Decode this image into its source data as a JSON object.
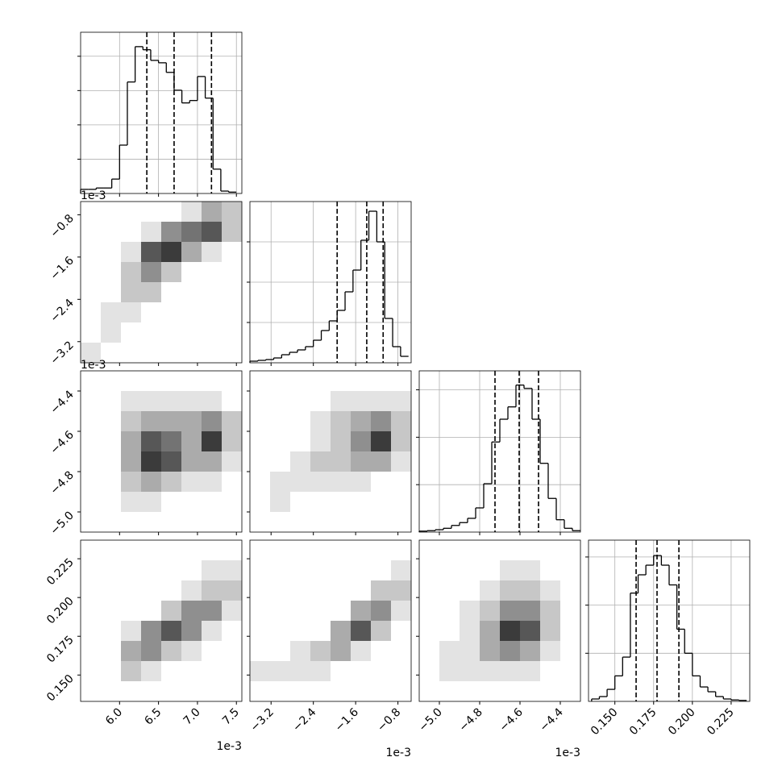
{
  "chart_data": {
    "type": "corner",
    "grid": true,
    "params": [
      {
        "xlim": [
          5.5,
          7.57
        ],
        "ticks": [
          {
            "value": 6,
            "label": "6.0"
          },
          {
            "value": 6.5,
            "label": "6.5"
          },
          {
            "value": 7,
            "label": "7.0"
          },
          {
            "value": 7.5,
            "label": "7.5"
          }
        ],
        "offset": "1e-3"
      },
      {
        "xlim": [
          -3.6,
          -0.55
        ],
        "ticks": [
          {
            "value": -3.2,
            "label": "−3.2"
          },
          {
            "value": -2.4,
            "label": "−2.4"
          },
          {
            "value": -1.6,
            "label": "−1.6"
          },
          {
            "value": -0.8,
            "label": "−0.8"
          }
        ],
        "offset": "1e-3"
      },
      {
        "xlim": [
          -5.1,
          -4.3
        ],
        "ticks": [
          {
            "value": -5.0,
            "label": "−5.0"
          },
          {
            "value": -4.8,
            "label": "−4.8"
          },
          {
            "value": -4.6,
            "label": "−4.6"
          },
          {
            "value": -4.4,
            "label": "−4.4"
          }
        ],
        "offset": "1e-3"
      },
      {
        "xlim": [
          0.133,
          0.237
        ],
        "ticks": [
          {
            "value": 0.15,
            "label": "0.150"
          },
          0.175,
          {
            "value": 0.2,
            "label": "0.200"
          },
          0.225
        ]
      }
    ],
    "histograms": [
      {
        "bins": [
          5.5,
          5.6,
          5.7,
          5.8,
          5.9,
          6.0,
          6.1,
          6.2,
          6.3,
          6.4,
          6.5,
          6.6,
          6.7,
          6.8,
          6.9,
          7.0,
          7.1,
          7.2,
          7.3,
          7.4,
          7.5
        ],
        "counts": [
          12,
          12,
          16,
          16,
          42,
          141,
          325,
          428,
          419,
          388,
          381,
          353,
          301,
          264,
          271,
          341,
          278,
          71,
          7,
          4
        ],
        "ylim": [
          0,
          470
        ],
        "yticks": [
          100,
          200,
          300,
          400
        ],
        "quantiles": [
          6.35,
          6.7,
          7.18
        ]
      },
      {
        "bins": [
          -3.6,
          -3.45,
          -3.3,
          -3.15,
          -3.0,
          -2.85,
          -2.7,
          -2.55,
          -2.4,
          -2.25,
          -2.1,
          -1.95,
          -1.8,
          -1.65,
          -1.5,
          -1.35,
          -1.2,
          -1.05,
          -0.9,
          -0.75,
          -0.6
        ],
        "counts": [
          4,
          6,
          8,
          12,
          20,
          26,
          32,
          40,
          56,
          80,
          104,
          130,
          176,
          230,
          304,
          376,
          300,
          110,
          40,
          16
        ],
        "ylim": [
          0,
          400
        ],
        "yticks": [
          100,
          200,
          300
        ],
        "quantiles": [
          -1.95,
          -1.39,
          -1.08
        ]
      },
      {
        "bins": [
          -5.1,
          -5.06,
          -5.02,
          -4.98,
          -4.94,
          -4.9,
          -4.86,
          -4.82,
          -4.78,
          -4.74,
          -4.7,
          -4.66,
          -4.62,
          -4.58,
          -4.54,
          -4.5,
          -4.46,
          -4.42,
          -4.38,
          -4.34,
          -4.3
        ],
        "counts": [
          2,
          3,
          5,
          8,
          14,
          20,
          29,
          51,
          102,
          190,
          238,
          264,
          310,
          303,
          238,
          145,
          71,
          26,
          8,
          3
        ],
        "ylim": [
          0,
          340
        ],
        "yticks": [
          100,
          200,
          300
        ],
        "quantiles": [
          -4.724,
          -4.604,
          -4.508
        ]
      },
      {
        "bins": [
          0.135,
          0.14,
          0.145,
          0.15,
          0.155,
          0.16,
          0.165,
          0.17,
          0.175,
          0.18,
          0.185,
          0.19,
          0.195,
          0.2,
          0.205,
          0.21,
          0.215,
          0.22,
          0.225,
          0.23,
          0.235
        ],
        "counts": [
          5,
          10,
          25,
          53,
          92,
          225,
          263,
          283,
          303,
          283,
          242,
          150,
          100,
          53,
          30,
          20,
          10,
          5,
          3,
          2
        ],
        "ylim": [
          0,
          335
        ],
        "yticks": [
          100,
          200,
          300
        ],
        "quantiles": [
          0.1637,
          0.1772,
          0.1913
        ]
      }
    ],
    "density": [
      {
        "x_param": 0,
        "y_param": 1,
        "values": [
          [
            0,
            0,
            0,
            0,
            0,
            1,
            3,
            2
          ],
          [
            0,
            0,
            0,
            1,
            4,
            5,
            6,
            2
          ],
          [
            0,
            0,
            1,
            6,
            7,
            3,
            1,
            0
          ],
          [
            0,
            0,
            2,
            4,
            2,
            0,
            0,
            0
          ],
          [
            0,
            0,
            2,
            2,
            0,
            0,
            0,
            0
          ],
          [
            0,
            1,
            1,
            0,
            0,
            0,
            0,
            0
          ],
          [
            0,
            1,
            0,
            0,
            0,
            0,
            0,
            0
          ],
          [
            1,
            0,
            0,
            0,
            0,
            0,
            0,
            0
          ]
        ]
      },
      {
        "x_param": 0,
        "y_param": 2,
        "values": [
          [
            0,
            0,
            0,
            0,
            0,
            0,
            0,
            0
          ],
          [
            0,
            0,
            1,
            1,
            1,
            1,
            1,
            0
          ],
          [
            0,
            0,
            2,
            3,
            3,
            3,
            4,
            2
          ],
          [
            0,
            0,
            3,
            6,
            5,
            3,
            7,
            2
          ],
          [
            0,
            0,
            3,
            7,
            6,
            3,
            3,
            1
          ],
          [
            0,
            0,
            2,
            3,
            2,
            1,
            1,
            0
          ],
          [
            0,
            0,
            1,
            1,
            0,
            0,
            0,
            0
          ],
          [
            0,
            0,
            0,
            0,
            0,
            0,
            0,
            0
          ]
        ]
      },
      {
        "x_param": 1,
        "y_param": 2,
        "values": [
          [
            0,
            0,
            0,
            0,
            0,
            0,
            0,
            0
          ],
          [
            0,
            0,
            0,
            0,
            1,
            1,
            1,
            1
          ],
          [
            0,
            0,
            0,
            1,
            2,
            3,
            4,
            2
          ],
          [
            0,
            0,
            0,
            1,
            2,
            4,
            7,
            2
          ],
          [
            0,
            0,
            1,
            2,
            2,
            3,
            3,
            1
          ],
          [
            0,
            1,
            1,
            1,
            1,
            1,
            0,
            0
          ],
          [
            0,
            1,
            0,
            0,
            0,
            0,
            0,
            0
          ],
          [
            0,
            0,
            0,
            0,
            0,
            0,
            0,
            0
          ]
        ]
      },
      {
        "x_param": 0,
        "y_param": 3,
        "values": [
          [
            0,
            0,
            0,
            0,
            0,
            0,
            0,
            0
          ],
          [
            0,
            0,
            0,
            0,
            0,
            0,
            1,
            1
          ],
          [
            0,
            0,
            0,
            0,
            0,
            1,
            2,
            2
          ],
          [
            0,
            0,
            0,
            0,
            2,
            4,
            4,
            1
          ],
          [
            0,
            0,
            1,
            4,
            6,
            4,
            1,
            0
          ],
          [
            0,
            0,
            3,
            4,
            2,
            1,
            0,
            0
          ],
          [
            0,
            0,
            2,
            1,
            0,
            0,
            0,
            0
          ],
          [
            0,
            0,
            0,
            0,
            0,
            0,
            0,
            0
          ]
        ]
      },
      {
        "x_param": 1,
        "y_param": 3,
        "values": [
          [
            0,
            0,
            0,
            0,
            0,
            0,
            0,
            0
          ],
          [
            0,
            0,
            0,
            0,
            0,
            0,
            0,
            1
          ],
          [
            0,
            0,
            0,
            0,
            0,
            0,
            2,
            2
          ],
          [
            0,
            0,
            0,
            0,
            0,
            3,
            4,
            1
          ],
          [
            0,
            0,
            0,
            0,
            3,
            6,
            2,
            0
          ],
          [
            0,
            0,
            1,
            2,
            3,
            1,
            0,
            0
          ],
          [
            1,
            1,
            1,
            1,
            0,
            0,
            0,
            0
          ],
          [
            0,
            0,
            0,
            0,
            0,
            0,
            0,
            0
          ]
        ]
      },
      {
        "x_param": 2,
        "y_param": 3,
        "values": [
          [
            0,
            0,
            0,
            0,
            0,
            0,
            0,
            0
          ],
          [
            0,
            0,
            0,
            0,
            1,
            1,
            0,
            0
          ],
          [
            0,
            0,
            0,
            1,
            2,
            2,
            1,
            0
          ],
          [
            0,
            0,
            1,
            2,
            4,
            4,
            2,
            0
          ],
          [
            0,
            0,
            1,
            3,
            7,
            6,
            2,
            0
          ],
          [
            0,
            1,
            1,
            3,
            4,
            3,
            1,
            0
          ],
          [
            0,
            1,
            1,
            1,
            1,
            1,
            0,
            0
          ],
          [
            0,
            0,
            0,
            0,
            0,
            0,
            0,
            0
          ]
        ]
      }
    ]
  }
}
